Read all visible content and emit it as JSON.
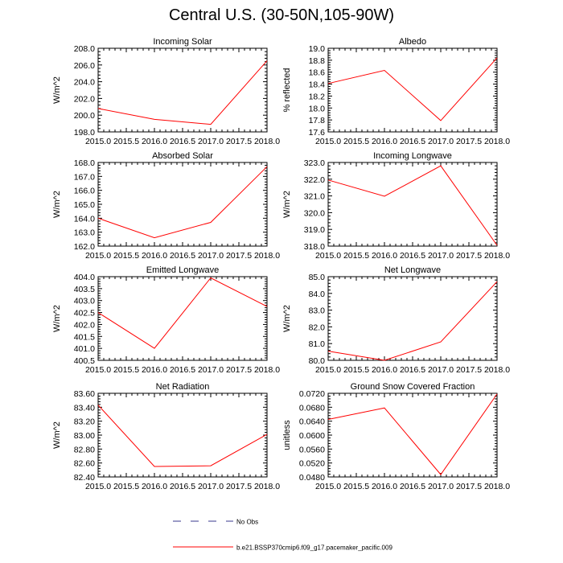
{
  "page_title": "Central U.S. (30-50N,105-90W)",
  "legend": [
    {
      "label": "No Obs",
      "color": "#3a3a8c",
      "dash": true
    },
    {
      "label": "b.e21.BSSP370cmip6.f09_g17.pacemaker_pacific.009",
      "color": "#ff0000",
      "dash": false
    }
  ],
  "chart_data": [
    {
      "type": "line",
      "title": "Incoming Solar",
      "ylabel": "W/m^2",
      "x": [
        2015,
        2016,
        2017,
        2018
      ],
      "y": [
        200.8,
        199.5,
        198.9,
        206.5
      ],
      "xlim": [
        2015,
        2018
      ],
      "ylim": [
        198,
        208
      ],
      "xticks": [
        "2015.0",
        "2015.5",
        "2016.0",
        "2016.5",
        "2017.0",
        "2017.5",
        "2018.0"
      ],
      "yticks": [
        "198.0",
        "200.0",
        "202.0",
        "204.0",
        "206.0",
        "208.0"
      ],
      "color": "#ff0000"
    },
    {
      "type": "line",
      "title": "Albedo",
      "ylabel": "% reflected",
      "x": [
        2015,
        2016,
        2017,
        2018
      ],
      "y": [
        18.41,
        18.63,
        17.79,
        18.84
      ],
      "xlim": [
        2015,
        2018
      ],
      "ylim": [
        17.6,
        19.0
      ],
      "xticks": [
        "2015.0",
        "2015.5",
        "2016.0",
        "2016.5",
        "2017.0",
        "2017.5",
        "2018.0"
      ],
      "yticks": [
        "17.6",
        "17.8",
        "18.0",
        "18.2",
        "18.4",
        "18.6",
        "18.8",
        "19.0"
      ],
      "color": "#ff0000"
    },
    {
      "type": "line",
      "title": "Absorbed Solar",
      "ylabel": "W/m^2",
      "x": [
        2015,
        2016,
        2017,
        2018
      ],
      "y": [
        164.0,
        162.6,
        163.7,
        167.7
      ],
      "xlim": [
        2015,
        2018
      ],
      "ylim": [
        162,
        168
      ],
      "xticks": [
        "2015.0",
        "2015.5",
        "2016.0",
        "2016.5",
        "2017.0",
        "2017.5",
        "2018.0"
      ],
      "yticks": [
        "162.0",
        "163.0",
        "164.0",
        "165.0",
        "166.0",
        "167.0",
        "168.0"
      ],
      "color": "#ff0000"
    },
    {
      "type": "line",
      "title": "Incoming Longwave",
      "ylabel": "W/m^2",
      "x": [
        2015,
        2016,
        2017,
        2018
      ],
      "y": [
        321.95,
        320.98,
        322.8,
        318.05
      ],
      "xlim": [
        2015,
        2018
      ],
      "ylim": [
        318,
        323
      ],
      "xticks": [
        "2015.0",
        "2015.5",
        "2016.0",
        "2016.5",
        "2017.0",
        "2017.5",
        "2018.0"
      ],
      "yticks": [
        "318.0",
        "319.0",
        "320.0",
        "321.0",
        "322.0",
        "323.0"
      ],
      "color": "#ff0000"
    },
    {
      "type": "line",
      "title": "Emitted Longwave",
      "ylabel": "W/m^2",
      "x": [
        2015,
        2016,
        2017,
        2018
      ],
      "y": [
        402.5,
        401.0,
        403.95,
        402.75
      ],
      "xlim": [
        2015,
        2018
      ],
      "ylim": [
        400.5,
        404.0
      ],
      "xticks": [
        "2015.0",
        "2015.5",
        "2016.0",
        "2016.5",
        "2017.0",
        "2017.5",
        "2018.0"
      ],
      "yticks": [
        "400.5",
        "401.0",
        "401.5",
        "402.0",
        "402.5",
        "403.0",
        "403.5",
        "404.0"
      ],
      "color": "#ff0000"
    },
    {
      "type": "line",
      "title": "Net Longwave",
      "ylabel": "W/m^2",
      "x": [
        2015,
        2016,
        2017,
        2018
      ],
      "y": [
        80.55,
        80.0,
        81.1,
        84.7
      ],
      "xlim": [
        2015,
        2018
      ],
      "ylim": [
        80.0,
        85.0
      ],
      "xticks": [
        "2015.0",
        "2015.5",
        "2016.0",
        "2016.5",
        "2017.0",
        "2017.5",
        "2018.0"
      ],
      "yticks": [
        "80.0",
        "81.0",
        "82.0",
        "83.0",
        "84.0",
        "85.0"
      ],
      "color": "#ff0000"
    },
    {
      "type": "line",
      "title": "Net Radiation",
      "ylabel": "W/m^2",
      "x": [
        2015,
        2016,
        2017,
        2018
      ],
      "y": [
        83.43,
        82.55,
        82.56,
        83.01
      ],
      "xlim": [
        2015,
        2018
      ],
      "ylim": [
        82.4,
        83.6
      ],
      "xticks": [
        "2015.0",
        "2015.5",
        "2016.0",
        "2016.5",
        "2017.0",
        "2017.5",
        "2018.0"
      ],
      "yticks": [
        "82.40",
        "82.60",
        "82.80",
        "83.00",
        "83.20",
        "83.40",
        "83.60"
      ],
      "color": "#ff0000"
    },
    {
      "type": "line",
      "title": "Ground Snow Covered Fraction",
      "ylabel": "unitless",
      "x": [
        2015,
        2016,
        2017,
        2018
      ],
      "y": [
        0.0645,
        0.0678,
        0.0487,
        0.0718
      ],
      "xlim": [
        2015,
        2018
      ],
      "ylim": [
        0.048,
        0.072
      ],
      "xticks": [
        "2015.0",
        "2015.5",
        "2016.0",
        "2016.5",
        "2017.0",
        "2017.5",
        "2018.0"
      ],
      "yticks": [
        "0.0480",
        "0.0520",
        "0.0560",
        "0.0600",
        "0.0640",
        "0.0680",
        "0.0720"
      ],
      "color": "#ff0000"
    }
  ]
}
